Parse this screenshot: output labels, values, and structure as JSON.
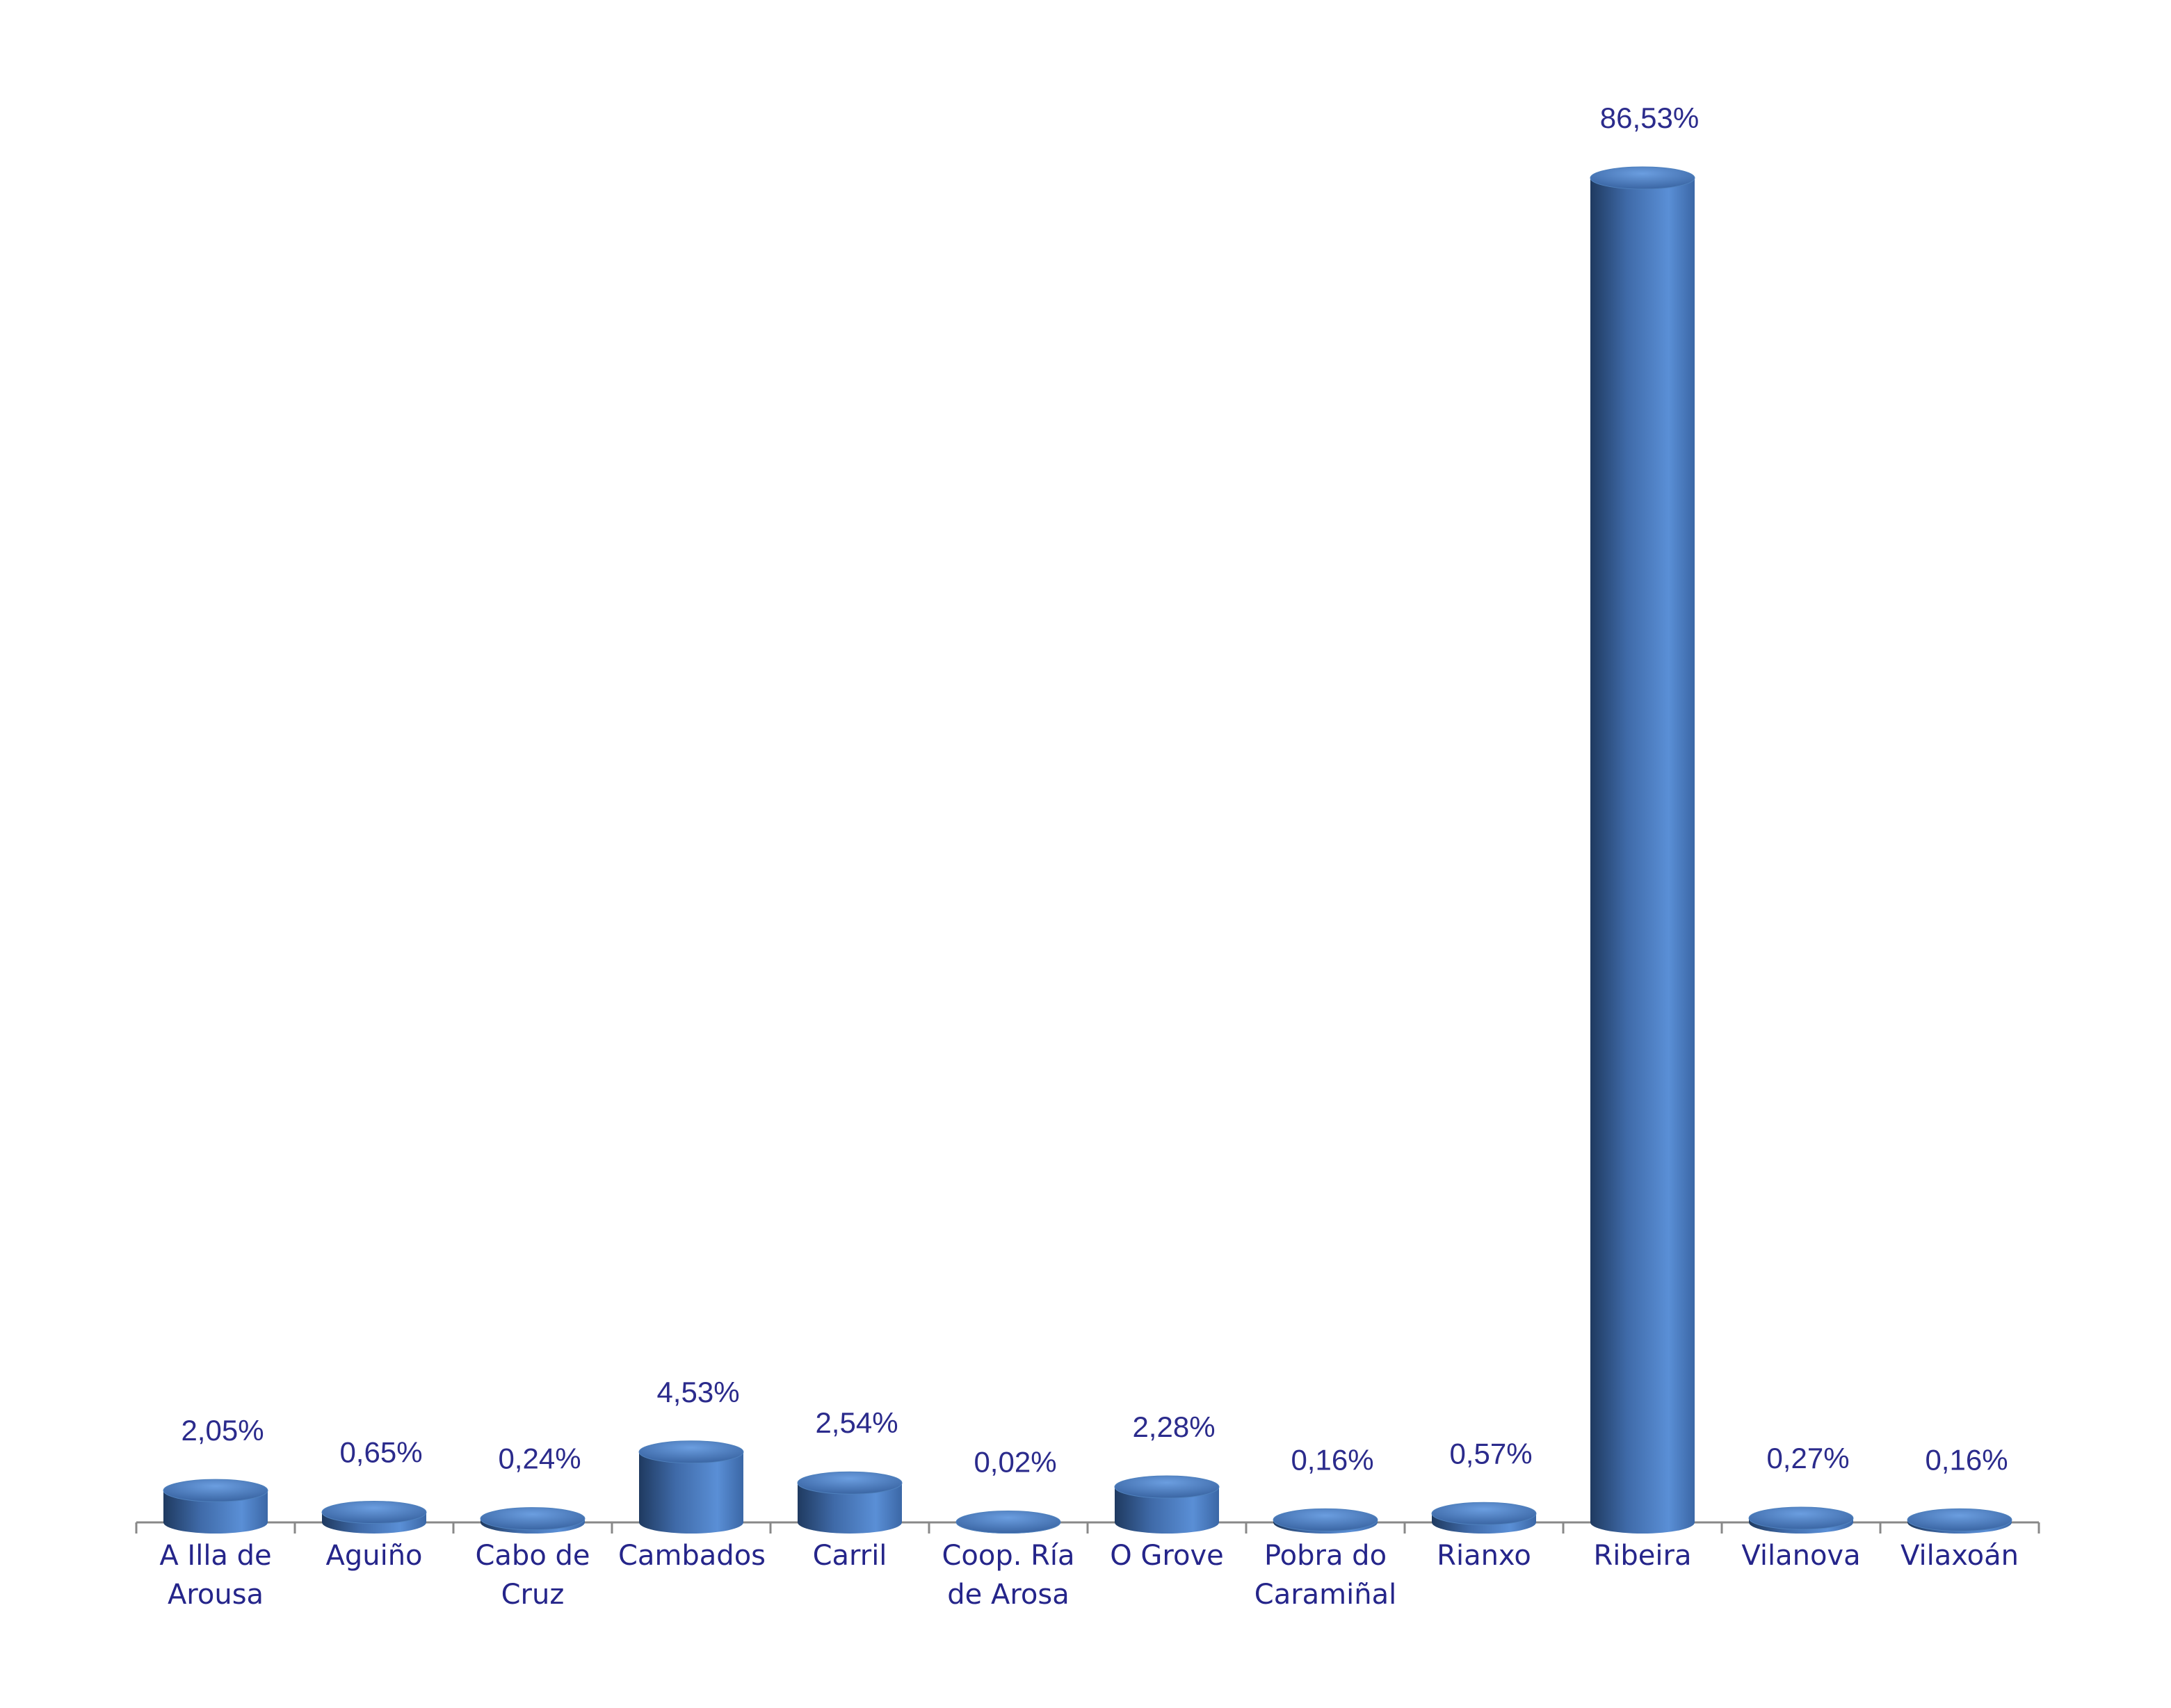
{
  "chart_data": {
    "type": "bar",
    "categories": [
      "A Illa de Arousa",
      "Aguiño",
      "Cabo de Cruz",
      "Cambados",
      "Carril",
      "Coop. Ría de Arosa",
      "O Grove",
      "Pobra do Caramiñal",
      "Rianxo",
      "Ribeira",
      "Vilanova",
      "Vilaxoán"
    ],
    "values": [
      2.05,
      0.65,
      0.24,
      4.53,
      2.54,
      0.02,
      2.28,
      0.16,
      0.57,
      86.53,
      0.27,
      0.16
    ],
    "value_labels": [
      "2,05%",
      "0,65%",
      "0,24%",
      "4,53%",
      "2,54%",
      "0,02%",
      "2,28%",
      "0,16%",
      "0,57%",
      "86,53%",
      "0,27%",
      "0,16%"
    ],
    "color": "#4f81bd"
  }
}
